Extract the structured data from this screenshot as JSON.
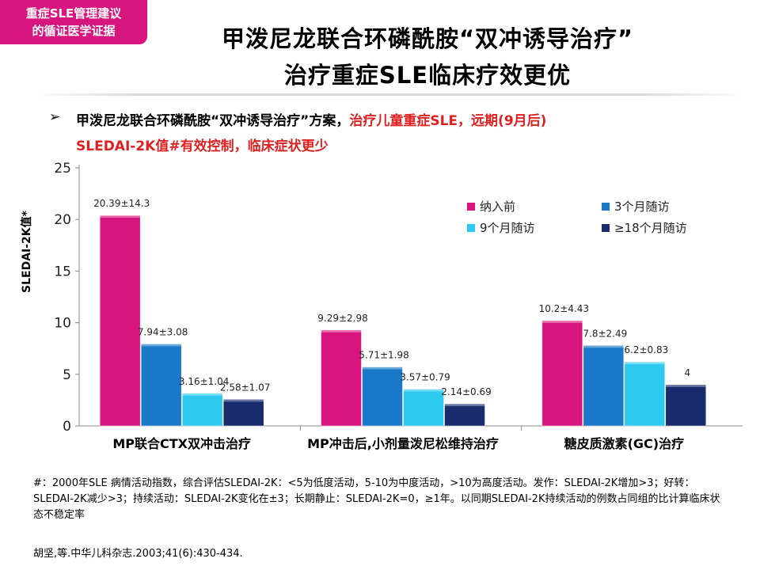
{
  "badge": {
    "line1": "重症SLE管理建议",
    "line2": "的循证医学证据"
  },
  "title": {
    "line1": "甲泼尼龙联合环磷酰胺“双冲诱导治疗”",
    "line2": "治疗重症SLE临床疗效更优"
  },
  "bullet": {
    "arrow": "➢",
    "line1_black": "甲泼尼龙联合环磷酰胺“双冲诱导治疗”方案，",
    "line1_red": "治疗儿童重症SLE，远期(9月后)",
    "line2": "SLEDAI-2K值#有效控制，临床症状更少"
  },
  "chart_data": {
    "type": "bar",
    "ylabel": "SLEDAI-2K值*",
    "ylim": [
      0,
      25
    ],
    "yticks": [
      0,
      5,
      10,
      15,
      20,
      25
    ],
    "grid": false,
    "legend_position": "top-right",
    "categories": [
      "MP联合CTX双冲击治疗",
      "MP冲击后,小剂量泼尼松维持治疗",
      "糖皮质激素(GC)治疗"
    ],
    "series": [
      {
        "name": "纳入前",
        "color": "#d8147e",
        "values": [
          20.39,
          9.29,
          10.2
        ],
        "labels": [
          "20.39±14.3",
          "9.29±2.98",
          "10.2±4.43"
        ]
      },
      {
        "name": "3个月随访",
        "color": "#1a78c8",
        "values": [
          7.94,
          5.71,
          7.8
        ],
        "labels": [
          "7.94±3.08",
          "5.71±1.98",
          "7.8±2.49"
        ]
      },
      {
        "name": "9个月随访",
        "color": "#2ec9ee",
        "values": [
          3.16,
          3.57,
          6.2
        ],
        "labels": [
          "3.16±1.04",
          "3.57±0.79",
          "6.2±0.83"
        ]
      },
      {
        "name": "≥18个月随访",
        "color": "#182c6e",
        "values": [
          2.58,
          2.14,
          4
        ],
        "labels": [
          "2.58±1.07",
          "2.14±0.69",
          "4"
        ]
      }
    ]
  },
  "footnote": "#：2000年SLE 病情活动指数，综合评估SLEDAI-2K：<5为低度活动，5-10为中度活动，>10为高度活动。发作：SLEDAI-2K增加>3；好转：SLEDAI-2K减少>3；持续活动：SLEDAI-2K变化在±3；长期静止：SLEDAI-2K=0，≥1年。以同期SLEDAI-2K持续活动的例数占同组的比计算临床状态不稳定率",
  "reference": "胡坚,等.中华儿科杂志.2003;41(6):430-434."
}
